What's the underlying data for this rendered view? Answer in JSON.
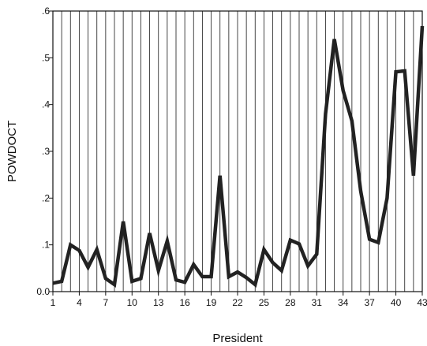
{
  "chart_data": {
    "type": "line",
    "title": "",
    "xlabel": "President",
    "ylabel": "POWDOCT",
    "xlim": [
      1,
      43
    ],
    "ylim": [
      0.0,
      0.6
    ],
    "x_ticks": [
      1,
      4,
      7,
      10,
      13,
      16,
      19,
      22,
      25,
      28,
      31,
      34,
      37,
      40,
      43
    ],
    "x_tick_labels": [
      "1",
      "4",
      "7",
      "10",
      "13",
      "16",
      "19",
      "22",
      "25",
      "28",
      "31",
      "34",
      "37",
      "40",
      "43"
    ],
    "y_ticks": [
      0.0,
      0.1,
      0.2,
      0.3,
      0.4,
      0.5,
      0.6
    ],
    "y_tick_labels": [
      "0.0",
      ".1",
      ".2",
      ".3",
      ".4",
      ".5",
      ".6"
    ],
    "vertical_gridlines": true,
    "line_color": "#222222",
    "series": [
      {
        "x": [
          1,
          2,
          3,
          4,
          5,
          6,
          7,
          8,
          9,
          10,
          11,
          12,
          13,
          14,
          15,
          16,
          17,
          18,
          19,
          20,
          21,
          22,
          23,
          24,
          25,
          26,
          27,
          28,
          29,
          30,
          31,
          32,
          33,
          34,
          35,
          36,
          37,
          38,
          39,
          40,
          41,
          42,
          43
        ],
        "values": [
          0.018,
          0.022,
          0.1,
          0.088,
          0.052,
          0.09,
          0.028,
          0.015,
          0.15,
          0.022,
          0.028,
          0.125,
          0.045,
          0.108,
          0.025,
          0.02,
          0.058,
          0.032,
          0.032,
          0.248,
          0.032,
          0.042,
          0.03,
          0.015,
          0.09,
          0.062,
          0.045,
          0.11,
          0.102,
          0.055,
          0.08,
          0.38,
          0.54,
          0.43,
          0.365,
          0.215,
          0.112,
          0.105,
          0.2,
          0.47,
          0.472,
          0.248,
          0.568
        ]
      }
    ]
  }
}
